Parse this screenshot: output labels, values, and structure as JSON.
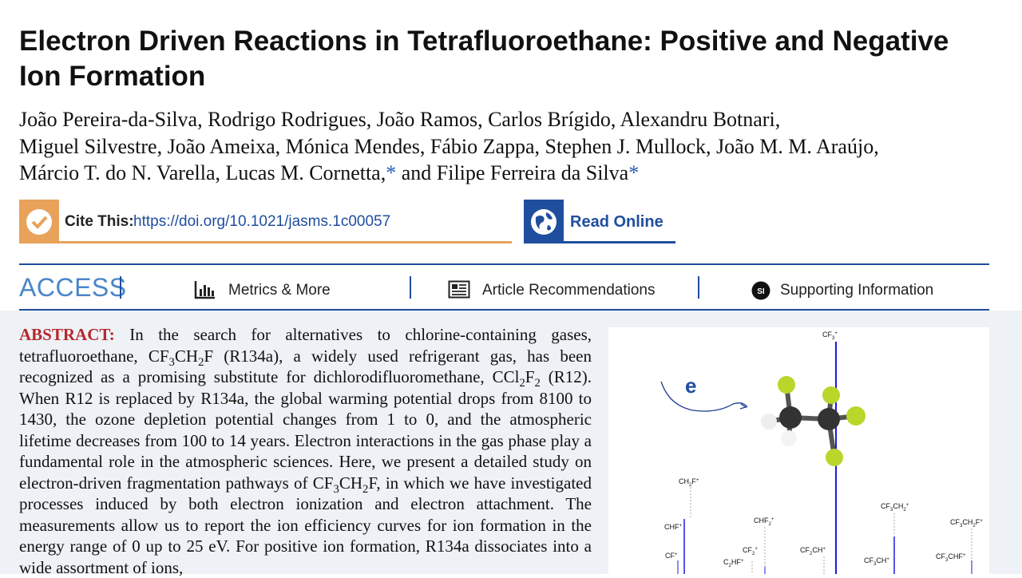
{
  "header": {
    "title": "Electron Driven Reactions in Tetrafluoroethane: Positive and Negative Ion Formation",
    "authors": [
      [
        "João Pereira-da-Silva, Rodrigo Rodrigues, João Ramos, Carlos Brígido, Alexandru Botnari,"
      ],
      [
        "Miguel Silvestre, João Ameixa, Mónica Mendes, Fábio Zappa, Stephen J. Mullock, João M. M. Araújo,"
      ],
      [
        "Márcio T. do N. Varella, Lucas M. Cornetta,",
        {
          "mark": "*"
        },
        " and Filipe Ferreira da Silva",
        {
          "mark": "*"
        }
      ]
    ]
  },
  "cite": {
    "label": "Cite This:",
    "doi": "https://doi.org/10.1021/jasms.1c00057"
  },
  "read_online": "Read Online",
  "tabs": {
    "access": "ACCESS",
    "items": [
      "Metrics & More",
      "Article Recommendations",
      "Supporting Information"
    ],
    "si_badge": "SI"
  },
  "abstract": {
    "label": "ABSTRACT:",
    "text": [
      "In the search for alternatives to chlorine-containing gases, tetrafluoroethane, CF",
      {
        "sub": "3"
      },
      "CH",
      {
        "sub": "2"
      },
      "F (R134a), a widely used refrigerant gas, has been recognized as a promising substitute for dichlorodifluoromethane, CCl",
      {
        "sub": "2"
      },
      "F",
      {
        "sub": "2"
      },
      " (R12). When R12 is replaced by R134a, the global warming potential drops from 8100 to 1430, the ozone depletion potential changes from 1 to 0, and the atmospheric lifetime decreases from 100 to 14 years. Electron interactions in the gas phase play a fundamental role in the atmospheric sciences. Here, we present a detailed study on electron-driven fragmentation pathways of CF",
      {
        "sub": "3"
      },
      "CH",
      {
        "sub": "2"
      },
      "F, in which we have investigated processes induced by both electron ionization and electron attachment. The measurements allow us to report the ion efficiency curves for ion formation in the energy range of 0 up to 25 eV. For positive ion formation, R134a dissociates into a wide assortment of ions,"
    ]
  },
  "figure": {
    "electron": "e",
    "labels": [
      [
        "CF",
        {
          "sub": "3"
        },
        {
          "sup": "+"
        }
      ],
      [
        "CH",
        {
          "sub": "2"
        },
        "F",
        {
          "sup": "+"
        }
      ],
      [
        "CHF",
        {
          "sup": "+"
        }
      ],
      [
        "CF",
        {
          "sup": "+"
        }
      ],
      [
        "CHF",
        {
          "sub": "2"
        },
        {
          "sup": "+"
        }
      ],
      [
        "CF",
        {
          "sub": "2"
        },
        {
          "sup": "+"
        }
      ],
      [
        "C",
        {
          "sub": "2"
        },
        "HF",
        {
          "sup": "+"
        }
      ],
      [
        "CF",
        {
          "sub": "2"
        },
        "CH",
        {
          "sup": "+"
        }
      ],
      [
        "CF",
        {
          "sub": "3"
        },
        "CH",
        {
          "sub": "2"
        },
        {
          "sup": "+"
        }
      ],
      [
        "CF",
        {
          "sub": "3"
        },
        "CH",
        {
          "sup": "+"
        }
      ],
      [
        "CF",
        {
          "sub": "3"
        },
        "CH",
        {
          "sub": "2"
        },
        "F",
        {
          "sup": "+"
        }
      ],
      [
        "CF",
        {
          "sub": "3"
        },
        "CHF",
        {
          "sup": "+"
        }
      ]
    ]
  }
}
